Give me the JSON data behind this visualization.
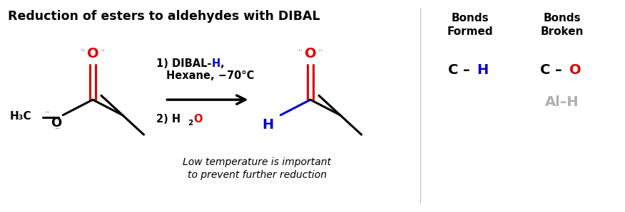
{
  "title": "Reduction of esters to aldehydes with DIBAL",
  "background_color": "#ffffff",
  "title_fontsize": 12.5,
  "title_fontweight": "bold",
  "bonds_formed_header": "Bonds\nFormed",
  "bonds_broken_header": "Bonds\nBroken",
  "note_line1": "Low temperature is important",
  "note_line2": "to prevent further reduction",
  "bond_broken2": "Al–H",
  "colors": {
    "black": "#000000",
    "red": "#dd0000",
    "blue": "#0000cc",
    "gray": "#b0b0b0",
    "white": "#ffffff",
    "line_sep": "#cccccc"
  }
}
